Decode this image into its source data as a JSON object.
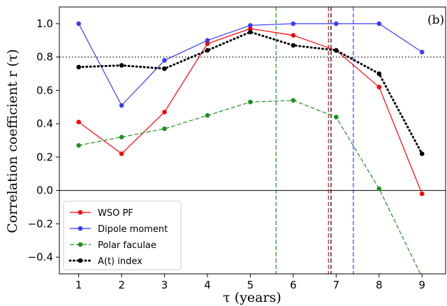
{
  "chart_data": {
    "type": "line",
    "panel_label": "(b)",
    "xlabel": "τ (years)",
    "ylabel": "Correlation coefficient r (τ)",
    "xlim": [
      0.55,
      9.55
    ],
    "ylim": [
      -0.5,
      1.1
    ],
    "xticks": [
      1,
      2,
      3,
      4,
      5,
      6,
      7,
      8,
      9
    ],
    "yticks": [
      -0.4,
      -0.2,
      0.0,
      0.2,
      0.4,
      0.6,
      0.8,
      1.0
    ],
    "ytick_labels": [
      "−0.4",
      "−0.2",
      "0.0",
      "0.2",
      "0.4",
      "0.6",
      "0.8",
      "1.0"
    ],
    "hline_solid": 0.0,
    "hline_dotted": 0.8,
    "legend_position": "lower-left",
    "series": [
      {
        "name": "WSO PF",
        "color": "#ff0000",
        "style": "solid",
        "x": [
          1,
          2,
          3,
          4,
          5,
          6,
          7,
          8,
          9
        ],
        "y": [
          0.41,
          0.22,
          0.47,
          0.88,
          0.97,
          0.93,
          0.84,
          0.62,
          -0.02
        ]
      },
      {
        "name": "Dipole moment",
        "color": "#3a3aff",
        "style": "solid",
        "x": [
          1,
          2,
          3,
          4,
          5,
          6,
          7,
          8,
          9
        ],
        "y": [
          1.0,
          0.51,
          0.78,
          0.9,
          0.99,
          1.0,
          1.0,
          1.0,
          0.83
        ]
      },
      {
        "name": "Polar faculae",
        "color": "#1f8f1f",
        "style": "dashed",
        "x": [
          1,
          2,
          3,
          4,
          5,
          6,
          7,
          8,
          9
        ],
        "y": [
          0.27,
          0.32,
          0.37,
          0.45,
          0.53,
          0.54,
          0.44,
          0.01,
          -0.52
        ]
      },
      {
        "name": "A(t) index",
        "color": "#000000",
        "style": "dotted",
        "x": [
          1,
          2,
          3,
          4,
          5,
          6,
          7,
          8,
          9
        ],
        "y": [
          0.74,
          0.75,
          0.73,
          0.84,
          0.95,
          0.87,
          0.84,
          0.7,
          0.22
        ]
      }
    ],
    "vlines": [
      {
        "x": 5.6,
        "color": "#1f8f1f",
        "style": "dashed"
      },
      {
        "x": 6.82,
        "color": "#ff0000",
        "style": "dashed"
      },
      {
        "x": 6.88,
        "color": "#000000",
        "style": "dashed"
      },
      {
        "x": 7.4,
        "color": "#3a3aff",
        "style": "dashed"
      }
    ]
  }
}
